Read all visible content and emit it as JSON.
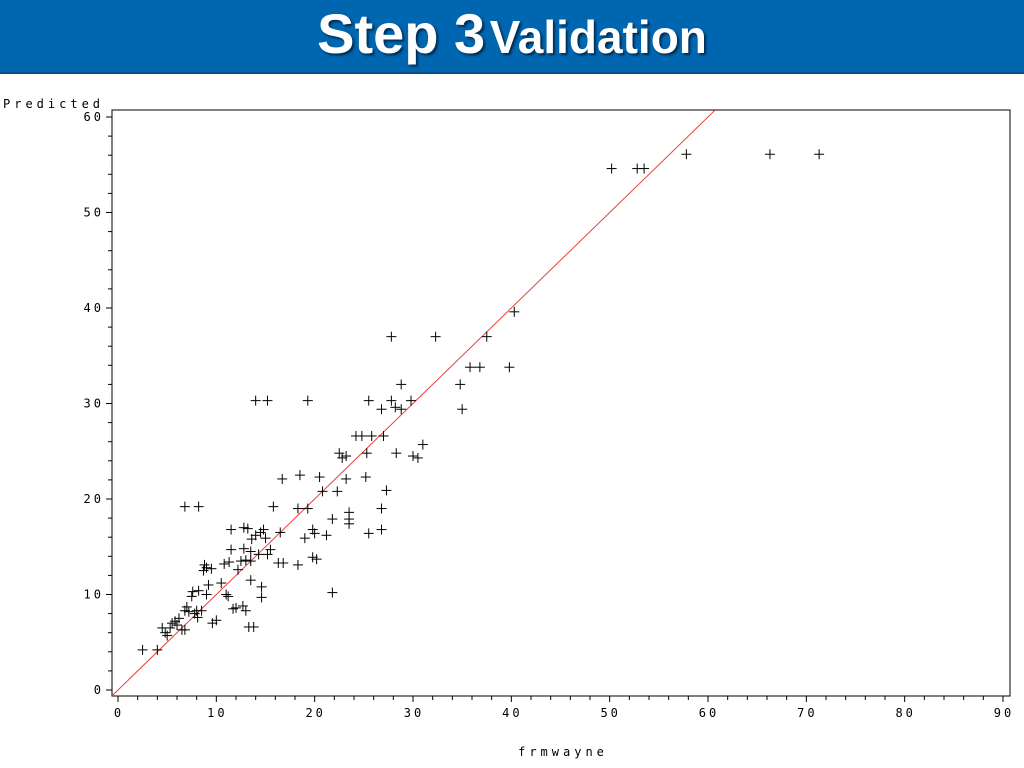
{
  "header": {
    "title_step": "Step 3",
    "title_rest": "Validation",
    "background": "#0066b0"
  },
  "chart_data": {
    "type": "scatter",
    "title": "",
    "xlabel": "frmwayne",
    "ylabel": "Predicted",
    "xlim": [
      0,
      90
    ],
    "ylim": [
      0,
      60
    ],
    "xticks": [
      0,
      10,
      20,
      30,
      40,
      50,
      60,
      70,
      80,
      90
    ],
    "yticks": [
      0,
      10,
      20,
      30,
      40,
      50,
      60
    ],
    "grid": false,
    "marker": "plus",
    "marker_color": "#000000",
    "reference_line": {
      "type": "y=x",
      "color": "#e8413c"
    },
    "points": [
      [
        2.5,
        4.2
      ],
      [
        4,
        4.2
      ],
      [
        4.5,
        6.5
      ],
      [
        4.8,
        6
      ],
      [
        5,
        5.7
      ],
      [
        5.3,
        6.5
      ],
      [
        5.5,
        7
      ],
      [
        5.8,
        7.2
      ],
      [
        6,
        6.8
      ],
      [
        6.2,
        7.5
      ],
      [
        6.5,
        6.3
      ],
      [
        6.8,
        8.3
      ],
      [
        6.8,
        6.3
      ],
      [
        7,
        8.7
      ],
      [
        7.2,
        8.2
      ],
      [
        7.5,
        9.8
      ],
      [
        7.6,
        10.3
      ],
      [
        7.8,
        8
      ],
      [
        8,
        8.3
      ],
      [
        8.1,
        7.6
      ],
      [
        8.2,
        10.4
      ],
      [
        8.5,
        8.3
      ],
      [
        8.7,
        12.5
      ],
      [
        8.8,
        13.1
      ],
      [
        9,
        12.8
      ],
      [
        9,
        10
      ],
      [
        9.2,
        11
      ],
      [
        9.5,
        12.7
      ],
      [
        9.6,
        7
      ],
      [
        10,
        7.3
      ],
      [
        10.5,
        11.2
      ],
      [
        10.8,
        13.2
      ],
      [
        11,
        10
      ],
      [
        11.2,
        9.8
      ],
      [
        11.3,
        13.4
      ],
      [
        11.5,
        14.7
      ],
      [
        11.5,
        16.8
      ],
      [
        11.7,
        8.5
      ],
      [
        12,
        8.6
      ],
      [
        12.2,
        12.6
      ],
      [
        12.5,
        13.5
      ],
      [
        12.7,
        8.8
      ],
      [
        12.8,
        14.8
      ],
      [
        12.8,
        17
      ],
      [
        13,
        8.3
      ],
      [
        13,
        13.6
      ],
      [
        13.2,
        16.9
      ],
      [
        13.3,
        6.6
      ],
      [
        13.5,
        13.5
      ],
      [
        13.5,
        11.5
      ],
      [
        13.5,
        14.5
      ],
      [
        13.6,
        15.8
      ],
      [
        13.8,
        6.6
      ],
      [
        14,
        30.3
      ],
      [
        14,
        16.2
      ],
      [
        14.3,
        14.2
      ],
      [
        14.5,
        16.5
      ],
      [
        14.6,
        10.8
      ],
      [
        14.6,
        9.7
      ],
      [
        14.8,
        16.8
      ],
      [
        15,
        15.9
      ],
      [
        15.2,
        30.3
      ],
      [
        15.2,
        14.2
      ],
      [
        15.5,
        14.7
      ],
      [
        15.8,
        19.2
      ],
      [
        16.3,
        13.3
      ],
      [
        16.5,
        16.5
      ],
      [
        16.7,
        22.1
      ],
      [
        16.8,
        13.3
      ],
      [
        18.3,
        19
      ],
      [
        18.3,
        13.1
      ],
      [
        18.5,
        22.5
      ],
      [
        19,
        15.9
      ],
      [
        19.3,
        30.3
      ],
      [
        19.3,
        19
      ],
      [
        19.8,
        16.8
      ],
      [
        19.8,
        13.9
      ],
      [
        20,
        16.4
      ],
      [
        20.2,
        13.7
      ],
      [
        20.5,
        22.3
      ],
      [
        20.8,
        20.8
      ],
      [
        21.2,
        16.2
      ],
      [
        21.8,
        10.2
      ],
      [
        21.8,
        17.9
      ],
      [
        22.3,
        20.8
      ],
      [
        22.5,
        24.8
      ],
      [
        22.8,
        24.3
      ],
      [
        23.2,
        24.5
      ],
      [
        23.2,
        22.1
      ],
      [
        23.5,
        18.6
      ],
      [
        23.5,
        17.9
      ],
      [
        23.5,
        17.4
      ],
      [
        24.2,
        26.6
      ],
      [
        24.8,
        26.6
      ],
      [
        25.2,
        22.3
      ],
      [
        25.3,
        24.8
      ],
      [
        25.5,
        30.3
      ],
      [
        25.5,
        16.4
      ],
      [
        25.8,
        26.6
      ],
      [
        26.8,
        29.4
      ],
      [
        26.8,
        16.8
      ],
      [
        26.8,
        19
      ],
      [
        27,
        26.6
      ],
      [
        27.3,
        20.9
      ],
      [
        27.8,
        30.3
      ],
      [
        27.8,
        37
      ],
      [
        28.2,
        29.6
      ],
      [
        28.3,
        24.8
      ],
      [
        28.8,
        32
      ],
      [
        28.8,
        29.4
      ],
      [
        29.8,
        30.3
      ],
      [
        30,
        24.5
      ],
      [
        30.5,
        24.3
      ],
      [
        31,
        25.7
      ],
      [
        32.3,
        37
      ],
      [
        34.8,
        32
      ],
      [
        35,
        29.4
      ],
      [
        35.8,
        33.8
      ],
      [
        36.8,
        33.8
      ],
      [
        37.5,
        37
      ],
      [
        39.8,
        33.8
      ],
      [
        40.3,
        39.6
      ],
      [
        50.2,
        54.6
      ],
      [
        52.8,
        54.6
      ],
      [
        53.5,
        54.6
      ],
      [
        57.8,
        56.1
      ],
      [
        66.3,
        56.1
      ],
      [
        71.3,
        56.1
      ],
      [
        6.8,
        19.2
      ],
      [
        8.2,
        19.2
      ]
    ]
  }
}
